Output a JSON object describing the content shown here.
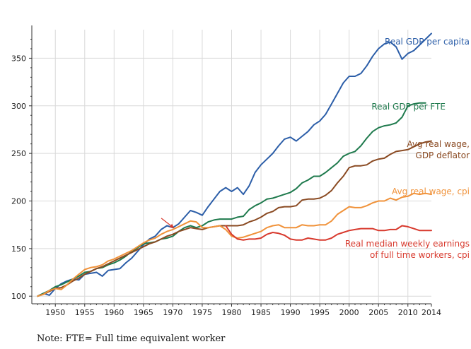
{
  "chart_data": {
    "type": "line",
    "title": "",
    "xlabel": "",
    "ylabel": "",
    "xlim": [
      1946,
      2014
    ],
    "ylim": [
      92,
      380
    ],
    "x_ticks": [
      1950,
      1955,
      1960,
      1965,
      1970,
      1975,
      1980,
      1985,
      1990,
      1995,
      2000,
      2005,
      2010,
      2014
    ],
    "y_ticks": [
      100,
      150,
      200,
      250,
      300,
      350
    ],
    "grid": true,
    "series": [
      {
        "name": "Real GDP per capita",
        "color": "#2c5ea8",
        "label_lines": [
          "Real GDP per capita"
        ],
        "x": [
          1947,
          1948,
          1949,
          1950,
          1951,
          1952,
          1953,
          1954,
          1955,
          1956,
          1957,
          1958,
          1959,
          1960,
          1961,
          1962,
          1963,
          1964,
          1965,
          1966,
          1967,
          1968,
          1969,
          1970,
          1971,
          1972,
          1973,
          1974,
          1975,
          1976,
          1977,
          1978,
          1979,
          1980,
          1981,
          1982,
          1983,
          1984,
          1985,
          1986,
          1987,
          1988,
          1989,
          1990,
          1991,
          1992,
          1993,
          1994,
          1995,
          1996,
          1997,
          1998,
          1999,
          2000,
          2001,
          2002,
          2003,
          2004,
          2005,
          2006,
          2007,
          2008,
          2009,
          2010,
          2011,
          2012,
          2013,
          2014
        ],
        "y": [
          100,
          103,
          101,
          108,
          113,
          116,
          118,
          117,
          123,
          124,
          125,
          121,
          127,
          128,
          129,
          135,
          140,
          147,
          154,
          160,
          163,
          170,
          174,
          172,
          176,
          183,
          190,
          188,
          185,
          194,
          202,
          210,
          214,
          210,
          214,
          207,
          216,
          230,
          238,
          244,
          250,
          258,
          265,
          267,
          263,
          268,
          273,
          280,
          284,
          291,
          302,
          313,
          324,
          331,
          331,
          334,
          342,
          352,
          360,
          365,
          367,
          362,
          349,
          355,
          358,
          364,
          370,
          376
        ]
      },
      {
        "name": "Real GDP per FTE",
        "color": "#1f7a4d",
        "label_lines": [
          "Real GDP per FTE"
        ],
        "x": [
          1947,
          1948,
          1949,
          1950,
          1951,
          1952,
          1953,
          1954,
          1955,
          1956,
          1957,
          1958,
          1959,
          1960,
          1961,
          1962,
          1963,
          1964,
          1965,
          1966,
          1967,
          1968,
          1969,
          1970,
          1971,
          1972,
          1973,
          1974,
          1975,
          1976,
          1977,
          1978,
          1979,
          1980,
          1981,
          1982,
          1983,
          1984,
          1985,
          1986,
          1987,
          1988,
          1989,
          1990,
          1991,
          1992,
          1993,
          1994,
          1995,
          1996,
          1997,
          1998,
          1999,
          2000,
          2001,
          2002,
          2003,
          2004,
          2005,
          2006,
          2007,
          2008,
          2009,
          2010,
          2011,
          2012,
          2013
        ],
        "y": [
          100,
          103,
          106,
          110,
          112,
          115,
          118,
          121,
          125,
          126,
          129,
          130,
          133,
          135,
          138,
          142,
          147,
          151,
          155,
          156,
          157,
          160,
          161,
          163,
          168,
          172,
          174,
          172,
          174,
          178,
          180,
          181,
          181,
          181,
          183,
          184,
          191,
          195,
          198,
          202,
          203,
          205,
          207,
          209,
          213,
          219,
          222,
          226,
          226,
          230,
          235,
          240,
          247,
          250,
          252,
          258,
          266,
          273,
          277,
          279,
          280,
          282,
          288,
          300,
          302,
          303,
          303
        ]
      },
      {
        "name": "Avg real wage, GDP deflator",
        "color": "#8a4a22",
        "label_lines": [
          "Avg real wage,",
          "GDP deflator"
        ],
        "x": [
          1947,
          1948,
          1949,
          1950,
          1951,
          1952,
          1953,
          1954,
          1955,
          1956,
          1957,
          1958,
          1959,
          1960,
          1961,
          1962,
          1963,
          1964,
          1965,
          1966,
          1967,
          1968,
          1969,
          1970,
          1971,
          1972,
          1973,
          1974,
          1975,
          1976,
          1977,
          1978,
          1979,
          1980,
          1981,
          1982,
          1983,
          1984,
          1985,
          1986,
          1987,
          1988,
          1989,
          1990,
          1991,
          1992,
          1993,
          1994,
          1995,
          1996,
          1997,
          1998,
          1999,
          2000,
          2001,
          2002,
          2003,
          2004,
          2005,
          2006,
          2007,
          2008,
          2009,
          2010,
          2011,
          2012,
          2013,
          2014
        ],
        "y": [
          100,
          102,
          105,
          108,
          109,
          112,
          116,
          119,
          123,
          126,
          129,
          131,
          134,
          137,
          140,
          143,
          146,
          149,
          152,
          155,
          157,
          160,
          163,
          165,
          168,
          170,
          172,
          171,
          170,
          172,
          173,
          174,
          174,
          174,
          174,
          175,
          178,
          180,
          183,
          187,
          189,
          193,
          194,
          194,
          195,
          201,
          202,
          202,
          203,
          206,
          211,
          219,
          226,
          235,
          237,
          237,
          238,
          242,
          244,
          245,
          249,
          252,
          253,
          254,
          257,
          260,
          262,
          263
        ]
      },
      {
        "name": "Avg real wage, cpi",
        "color": "#f0923a",
        "label_lines": [
          "Avg real wage, cpi"
        ],
        "x": [
          1947,
          1948,
          1949,
          1950,
          1951,
          1952,
          1953,
          1954,
          1955,
          1956,
          1957,
          1958,
          1959,
          1960,
          1961,
          1962,
          1963,
          1964,
          1965,
          1966,
          1967,
          1968,
          1969,
          1970,
          1971,
          1972,
          1973,
          1974,
          1975,
          1976,
          1977,
          1978,
          1979,
          1980,
          1981,
          1982,
          1983,
          1984,
          1985,
          1986,
          1987,
          1988,
          1989,
          1990,
          1991,
          1992,
          1993,
          1994,
          1995,
          1996,
          1997,
          1998,
          1999,
          2000,
          2001,
          2002,
          2003,
          2004,
          2005,
          2006,
          2007,
          2008,
          2009,
          2010,
          2011,
          2012,
          2013,
          2014
        ],
        "y": [
          100,
          102,
          106,
          108,
          107,
          112,
          118,
          123,
          128,
          130,
          131,
          133,
          137,
          139,
          142,
          145,
          148,
          152,
          156,
          159,
          161,
          165,
          168,
          170,
          173,
          176,
          179,
          178,
          172,
          172,
          173,
          174,
          170,
          163,
          161,
          162,
          164,
          166,
          168,
          172,
          174,
          175,
          172,
          172,
          172,
          175,
          174,
          174,
          175,
          175,
          179,
          186,
          190,
          194,
          193,
          193,
          195,
          198,
          200,
          200,
          203,
          201,
          204,
          205,
          208,
          207,
          208,
          207
        ]
      },
      {
        "name": "Real median weekly earnings of full time workers, cpi",
        "color": "#d83a2e",
        "label_lines": [
          "Real median weekly earnings",
          "of full time workers, cpi"
        ],
        "x": [
          1979,
          1980,
          1981,
          1982,
          1983,
          1984,
          1985,
          1986,
          1987,
          1988,
          1989,
          1990,
          1991,
          1992,
          1993,
          1994,
          1995,
          1996,
          1997,
          1998,
          1999,
          2000,
          2001,
          2002,
          2003,
          2004,
          2005,
          2006,
          2007,
          2008,
          2009,
          2010,
          2011,
          2012,
          2013,
          2014
        ],
        "y": [
          174,
          165,
          160,
          159,
          160,
          160,
          161,
          165,
          167,
          166,
          164,
          160,
          159,
          159,
          161,
          160,
          159,
          159,
          161,
          165,
          167,
          169,
          170,
          171,
          171,
          171,
          169,
          169,
          170,
          170,
          174,
          173,
          171,
          169,
          169,
          169
        ]
      }
    ],
    "note": "Note: FTE= Full time equivalent worker"
  },
  "colors": {
    "axis": "#333333",
    "grid": "#d9d9d9",
    "arrow": "#d83a2e"
  }
}
